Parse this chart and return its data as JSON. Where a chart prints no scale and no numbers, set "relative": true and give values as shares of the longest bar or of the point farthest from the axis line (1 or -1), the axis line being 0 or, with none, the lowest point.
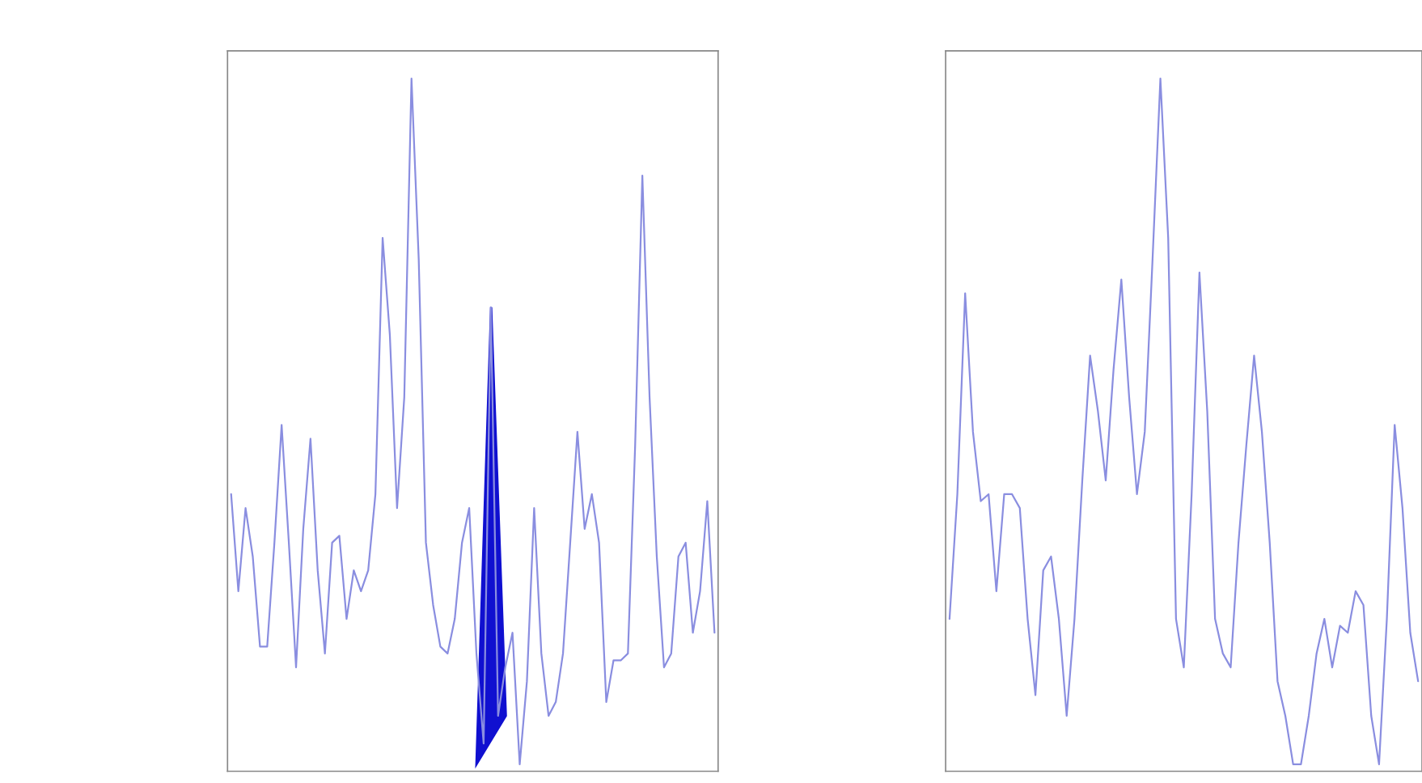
{
  "chart_data": [
    {
      "type": "line",
      "relative": true,
      "categories": [
        null,
        null,
        null,
        null,
        null,
        null,
        null,
        null,
        null,
        null,
        null,
        null,
        null,
        null,
        null,
        null,
        null,
        null,
        null,
        null,
        null,
        null,
        null,
        null,
        null,
        null,
        null,
        null,
        null,
        null,
        null,
        null,
        null,
        null,
        null,
        null,
        null,
        null,
        null,
        null,
        null,
        null,
        null,
        null,
        null,
        null,
        null,
        null,
        null,
        null,
        null,
        null,
        null,
        null,
        null,
        null,
        null,
        null,
        null,
        null,
        null,
        null,
        null,
        null,
        null,
        null,
        null,
        null
      ],
      "series": [
        {
          "color": "#8a8ee0",
          "values": [
            0.4,
            0.26,
            0.38,
            0.31,
            0.18,
            0.18,
            0.33,
            0.5,
            0.33,
            0.15,
            0.35,
            0.48,
            0.29,
            0.17,
            0.33,
            0.34,
            0.22,
            0.29,
            0.26,
            0.29,
            0.4,
            0.77,
            0.63,
            0.38,
            0.54,
            1,
            0.74,
            0.33,
            0.24,
            0.18,
            0.17,
            0.22,
            0.33,
            0.38,
            0.17,
            0.04,
            0.67,
            0.08,
            0.15,
            0.2,
            0.01,
            0.13,
            0.38,
            0.17,
            0.08,
            0.1,
            0.17,
            0.33,
            0.49,
            0.35,
            0.4,
            0.33,
            0.1,
            0.16,
            0.16,
            0.17,
            0.47,
            0.86,
            0.54,
            0.31,
            0.15,
            0.17,
            0.31,
            0.33,
            0.2,
            0.26,
            0.39,
            0.2
          ]
        }
      ]
    },
    {
      "type": "line",
      "relative": true,
      "categories": [
        null,
        null,
        null,
        null,
        null,
        null,
        null,
        null,
        null,
        null,
        null,
        null,
        null,
        null,
        null,
        null,
        null,
        null,
        null,
        null,
        null,
        null,
        null,
        null,
        null,
        null,
        null,
        null,
        null,
        null,
        null,
        null,
        null,
        null,
        null,
        null,
        null,
        null,
        null,
        null,
        null,
        null,
        null,
        null,
        null,
        null,
        null,
        null,
        null,
        null,
        null,
        null,
        null,
        null,
        null,
        null,
        null,
        null,
        null,
        null,
        null
      ],
      "series": [
        {
          "color": "#8a8ee0",
          "values": [
            0.22,
            0.4,
            0.69,
            0.49,
            0.39,
            0.4,
            0.26,
            0.4,
            0.4,
            0.38,
            0.22,
            0.11,
            0.29,
            0.31,
            0.22,
            0.08,
            0.22,
            0.42,
            0.6,
            0.52,
            0.42,
            0.58,
            0.71,
            0.54,
            0.4,
            0.49,
            0.74,
            1,
            0.77,
            0.22,
            0.15,
            0.4,
            0.72,
            0.52,
            0.22,
            0.17,
            0.15,
            0.33,
            0.47,
            0.6,
            0.49,
            0.33,
            0.13,
            0.08,
            0.01,
            0.01,
            0.08,
            0.17,
            0.22,
            0.15,
            0.21,
            0.2,
            0.26,
            0.24,
            0.08,
            0.01,
            0.22,
            0.5,
            0.38,
            0.2,
            0.13
          ]
        }
      ]
    }
  ]
}
